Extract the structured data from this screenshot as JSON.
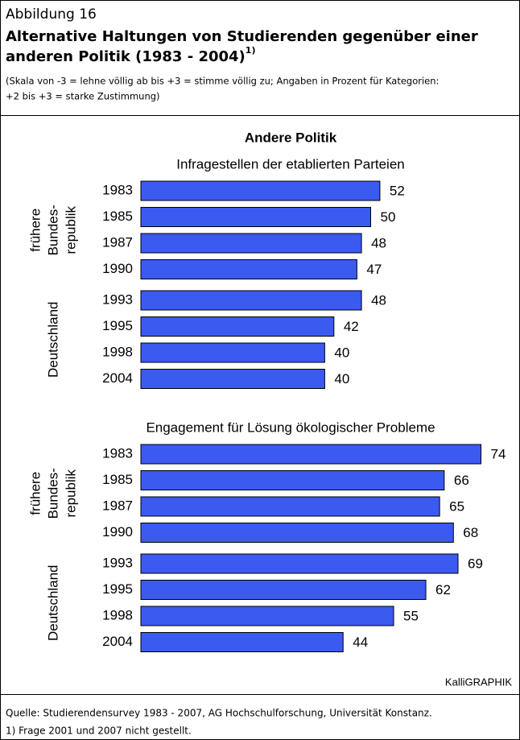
{
  "header": {
    "label": "Abbildung 16",
    "title_lines": [
      "Alternative Haltungen von Studierenden gegenüber einer",
      "anderen Politik (1983 - 2004)"
    ],
    "title_note": "1)",
    "subtitle_lines": [
      "(Skala von  -3 = lehne völlig ab bis +3 = stimme völlig zu; Angaben in Prozent für Kategorien:",
      "+2 bis +3 = starke Zustimmung)"
    ]
  },
  "figure_title": "Andere Politik",
  "chart_data": [
    {
      "type": "bar",
      "orientation": "horizontal",
      "title": "Infragestellen der etablierten Parteien",
      "categories": [
        "1983",
        "1985",
        "1987",
        "1990",
        "1993",
        "1995",
        "1998",
        "2004"
      ],
      "values": [
        52,
        50,
        48,
        47,
        48,
        42,
        40,
        40
      ],
      "color": "#3a5af0",
      "groups": [
        [
          "frühere",
          "Bundes-",
          "republik"
        ],
        [
          "Deutschland"
        ]
      ]
    },
    {
      "type": "bar",
      "orientation": "horizontal",
      "title": "Engagement für Lösung ökologischer Probleme",
      "categories": [
        "1983",
        "1985",
        "1987",
        "1990",
        "1993",
        "1995",
        "1998",
        "2004"
      ],
      "values": [
        74,
        66,
        65,
        68,
        69,
        62,
        55,
        44
      ],
      "color": "#3a5af0",
      "groups": [
        [
          "frühere",
          "Bundes-",
          "republik"
        ],
        [
          "Deutschland"
        ]
      ]
    }
  ],
  "credit": "KalliGRAPHIK",
  "footer": {
    "source": "Quelle: Studierendensurvey 1983 - 2007, AG Hochschulforschung, Universität Konstanz.",
    "note": "1) Frage 2001 und 2007 nicht gestellt."
  }
}
